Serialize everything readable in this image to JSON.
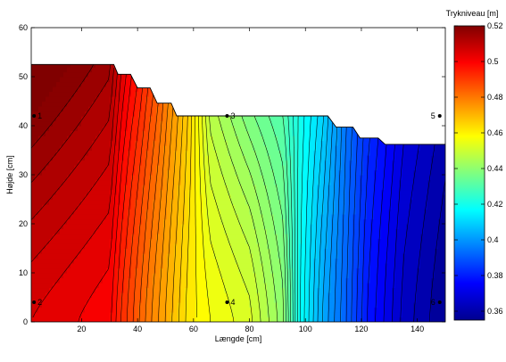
{
  "chart_data": {
    "type": "heatmap",
    "subtype": "filled-contour",
    "xlabel": "Længde [cm]",
    "ylabel": "Højde [cm]",
    "colorbar_label": "Trykniveau [m]",
    "xlim": [
      2,
      150
    ],
    "ylim": [
      0,
      60
    ],
    "xticks": [
      "20",
      "40",
      "60",
      "80",
      "100",
      "120",
      "140"
    ],
    "yticks": [
      "0",
      "10",
      "20",
      "30",
      "40",
      "50",
      "60"
    ],
    "colorbar_range": [
      0.355,
      0.52
    ],
    "colorbar_ticks": [
      "0.36",
      "0.38",
      "0.4",
      "0.42",
      "0.44",
      "0.46",
      "0.48",
      "0.5",
      "0.52"
    ],
    "colormap": "jet",
    "n_contour_levels": 55,
    "surface_profile": [
      [
        2,
        52.5
      ],
      [
        31.5,
        52.5
      ],
      [
        33,
        50.5
      ],
      [
        37.5,
        50.5
      ],
      [
        40,
        47.7
      ],
      [
        44.5,
        47.7
      ],
      [
        47,
        44.6
      ],
      [
        52,
        44.6
      ],
      [
        54,
        42
      ],
      [
        108,
        42
      ],
      [
        111,
        39.7
      ],
      [
        117,
        39.7
      ],
      [
        119.5,
        37.5
      ],
      [
        126,
        37.5
      ],
      [
        128.5,
        36.2
      ],
      [
        150,
        36.2
      ]
    ],
    "head_field": [
      {
        "x": 2,
        "top": 0.525,
        "bottom": 0.505
      },
      {
        "x": 30,
        "top": 0.515,
        "bottom": 0.5
      },
      {
        "x": 34,
        "top": 0.505,
        "bottom": 0.493
      },
      {
        "x": 45,
        "top": 0.488,
        "bottom": 0.478
      },
      {
        "x": 58,
        "top": 0.466,
        "bottom": 0.462
      },
      {
        "x": 66,
        "top": 0.447,
        "bottom": 0.457
      },
      {
        "x": 80,
        "top": 0.437,
        "bottom": 0.452
      },
      {
        "x": 92,
        "top": 0.43,
        "bottom": 0.44
      },
      {
        "x": 98,
        "top": 0.42,
        "bottom": 0.418
      },
      {
        "x": 106,
        "top": 0.41,
        "bottom": 0.403
      },
      {
        "x": 114,
        "top": 0.395,
        "bottom": 0.392
      },
      {
        "x": 122,
        "top": 0.383,
        "bottom": 0.379
      },
      {
        "x": 135,
        "top": 0.37,
        "bottom": 0.366
      },
      {
        "x": 150,
        "top": 0.362,
        "bottom": 0.358
      }
    ],
    "markers": [
      {
        "label": "1",
        "x": 3,
        "y": 42
      },
      {
        "label": "2",
        "x": 3,
        "y": 4
      },
      {
        "label": "3",
        "x": 72,
        "y": 42
      },
      {
        "label": "4",
        "x": 72,
        "y": 4
      },
      {
        "label": "5",
        "x": 148,
        "y": 42
      },
      {
        "label": "6",
        "x": 148,
        "y": 4
      }
    ]
  }
}
